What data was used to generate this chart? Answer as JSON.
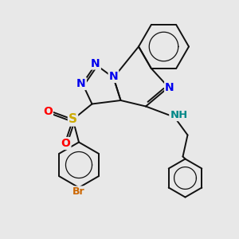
{
  "background_color": "#e8e8e8",
  "figsize": [
    3.0,
    3.0
  ],
  "dpi": 100,
  "atom_colors": {
    "N": "#0000ee",
    "O": "#ff0000",
    "S": "#ccaa00",
    "Br": "#cc6600",
    "NH": "#008888",
    "C": "#111111"
  },
  "bond_color": "#111111",
  "bond_width": 1.4,
  "dbo": 0.09,
  "font_size": 9.5
}
